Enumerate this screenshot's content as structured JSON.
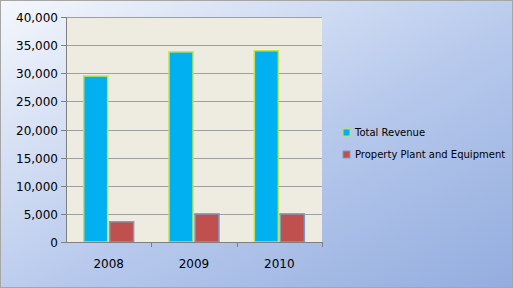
{
  "chart_data": {
    "type": "bar",
    "categories": [
      "2008",
      "2009",
      "2010"
    ],
    "series": [
      {
        "name": "Total Revenue",
        "color": "#00b0f0",
        "values": [
          29500,
          33800,
          34000
        ]
      },
      {
        "name": "Property Plant and Equipment",
        "color": "#c0504d",
        "values": [
          3600,
          5000,
          5000
        ]
      }
    ],
    "ylim": [
      0,
      40000
    ],
    "yticks": [
      0,
      {
        "value": 5000,
        "label": "5,000"
      },
      {
        "value": 10000,
        "label": "10,000"
      },
      {
        "value": 15000,
        "label": "15,000"
      },
      {
        "value": 20000,
        "label": "20,000"
      },
      {
        "value": 25000,
        "label": "25,000"
      },
      {
        "value": 30000,
        "label": "30,000"
      },
      {
        "value": 35000,
        "label": "35,000"
      },
      {
        "value": 40000,
        "label": "40,000"
      }
    ],
    "grid": true,
    "legend": "right"
  }
}
